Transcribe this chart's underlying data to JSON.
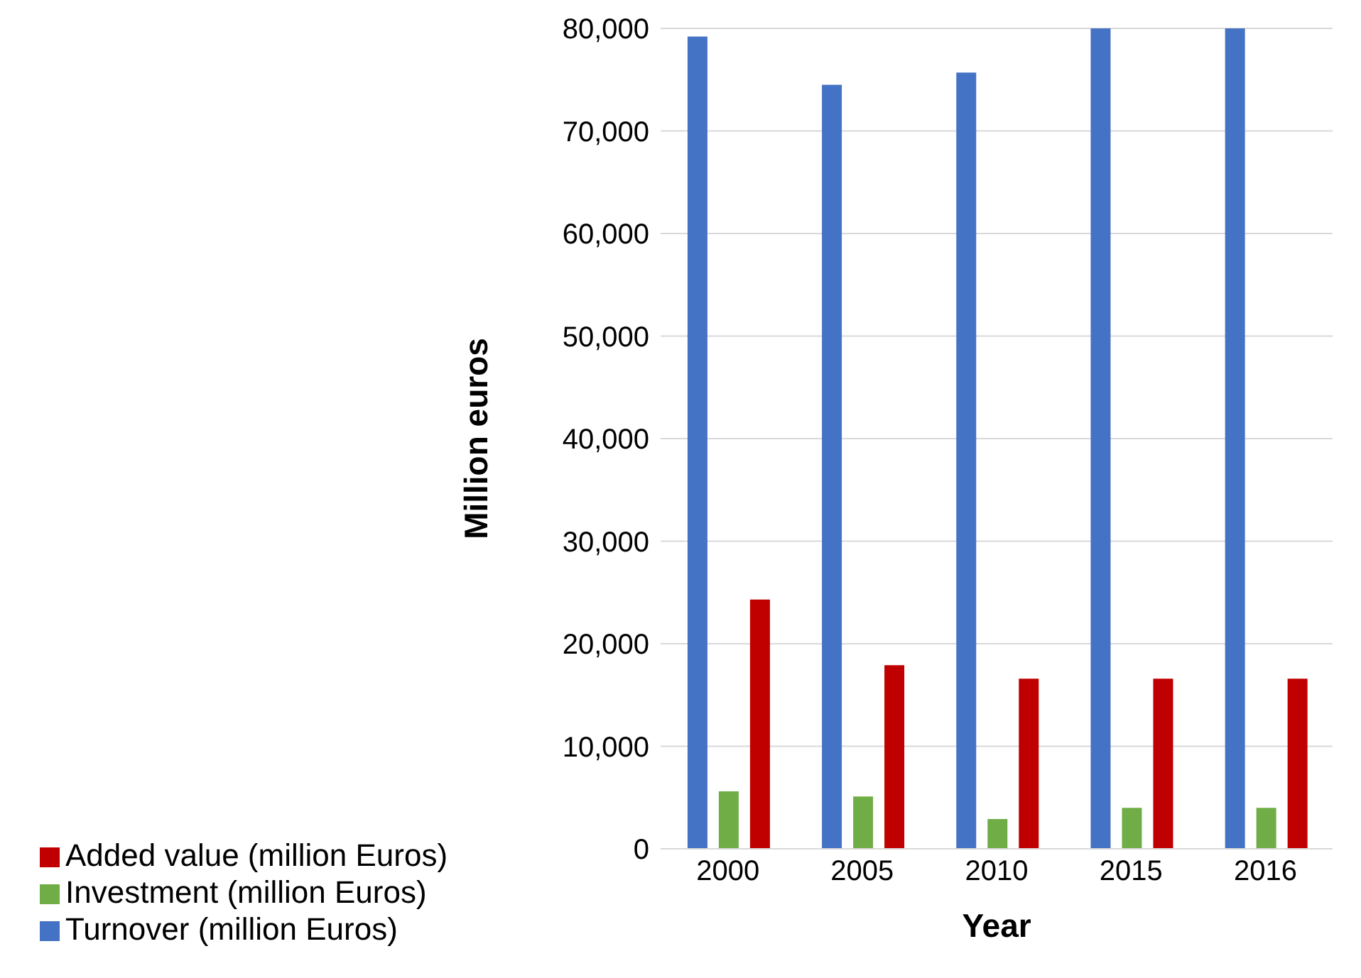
{
  "chart_data": {
    "type": "bar",
    "xlabel": "Year",
    "ylabel": "Million euros",
    "categories": [
      "2000",
      "2005",
      "2010",
      "2015",
      "2016"
    ],
    "series": [
      {
        "name": "Turnover (million Euros)",
        "color": "#4472c4",
        "values": [
          79200,
          74500,
          75700,
          80000,
          80000
        ]
      },
      {
        "name": "Investment (million Euros)",
        "color": "#70ad47",
        "values": [
          5600,
          5100,
          2900,
          4000,
          4000
        ]
      },
      {
        "name": "Added value (million Euros)",
        "color": "#c00000",
        "values": [
          24300,
          17900,
          16600,
          16600,
          16600
        ]
      }
    ],
    "ylim": [
      0,
      80000
    ],
    "yticks": [
      {
        "value": 0,
        "label": "0"
      },
      {
        "value": 10000,
        "label": "10,000"
      },
      {
        "value": 20000,
        "label": "20,000"
      },
      {
        "value": 30000,
        "label": "30,000"
      },
      {
        "value": 40000,
        "label": "40,000"
      },
      {
        "value": 50000,
        "label": "50,000"
      },
      {
        "value": 60000,
        "label": "60,000"
      },
      {
        "value": 70000,
        "label": "70,000"
      },
      {
        "value": 80000,
        "label": "80,000"
      }
    ],
    "grid": "y",
    "legend": "bottom left"
  }
}
